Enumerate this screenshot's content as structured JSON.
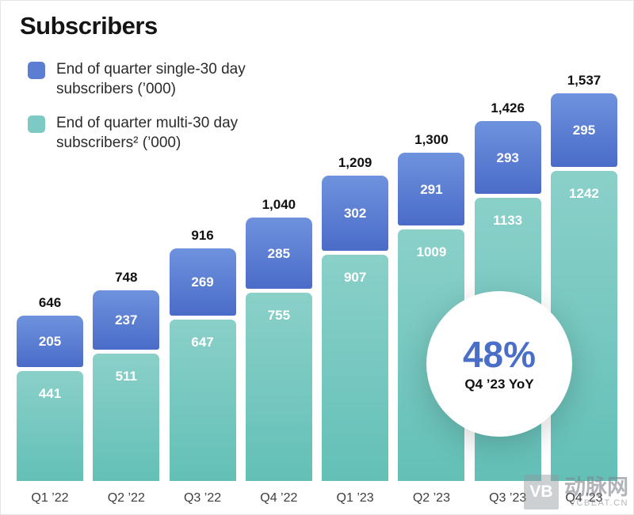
{
  "page": {
    "title": "Subscribers"
  },
  "legend": [
    {
      "label": "End of quarter single-30 day subscribers (’000)",
      "color": "#5b7ed2"
    },
    {
      "label": "End of quarter multi-30 day subscribers² (’000)",
      "color": "#7ccac3"
    }
  ],
  "chart_data": {
    "type": "bar",
    "stacked": true,
    "title": "Subscribers",
    "categories": [
      "Q1 ’22",
      "Q2 ’22",
      "Q3 ’22",
      "Q4 ’22",
      "Q1 ’23",
      "Q2 ’23",
      "Q3 ’23",
      "Q4 ’23"
    ],
    "series": [
      {
        "name": "End of quarter single-30 day subscribers (’000)",
        "color": "#5b7ed2",
        "values": [
          205,
          237,
          269,
          285,
          302,
          291,
          293,
          295
        ]
      },
      {
        "name": "End of quarter multi-30 day subscribers (’000)",
        "color": "#72c5bd",
        "values": [
          441,
          511,
          647,
          755,
          907,
          1009,
          1133,
          1242
        ]
      }
    ],
    "totals": [
      "646",
      "748",
      "916",
      "1,040",
      "1,209",
      "1,300",
      "1,426",
      "1,537"
    ],
    "ylim": [
      0,
      1537
    ],
    "grid": false,
    "legend_position": "top-left"
  },
  "badge": {
    "value": "48%",
    "caption": "Q4 ’23 YoY"
  },
  "watermark": {
    "logo": "VB",
    "name": "动脉网",
    "site": "VCBEAT.CN"
  }
}
